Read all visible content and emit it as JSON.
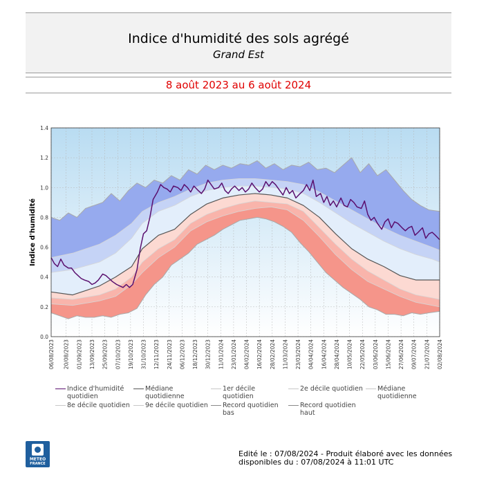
{
  "header": {
    "title": "Indice d'humidité des sols agrégé",
    "subtitle": "Grand Est",
    "period": "8 août 2023 au 6 août 2024"
  },
  "colors": {
    "period_text": "#e00000",
    "index_line": "#5a0f6e",
    "median_line": "#555555",
    "dry_band": "#f59a8e",
    "wet_band": "#8fa5ee",
    "grid": "#b8b8b8"
  },
  "chart_data": {
    "type": "area",
    "ylabel": "Indice d'humidité",
    "ylim": [
      0.0,
      1.4
    ],
    "yticks": [
      "0.0",
      "0.2",
      "0.4",
      "0.6",
      "0.8",
      "1.0",
      "1.2",
      "1.4"
    ],
    "xlim_days": [
      0,
      362
    ],
    "xticks": [
      "06/08/2023",
      "20/08/2023",
      "01/09/2023",
      "13/09/2023",
      "25/09/2023",
      "07/10/2023",
      "19/10/2023",
      "31/10/2023",
      "12/11/2023",
      "24/11/2023",
      "06/12/2023",
      "18/12/2023",
      "30/12/2023",
      "11/01/2024",
      "23/01/2024",
      "04/02/2024",
      "16/02/2024",
      "28/02/2024",
      "11/03/2024",
      "23/03/2024",
      "04/04/2024",
      "16/04/2024",
      "28/04/2024",
      "10/05/2024",
      "22/05/2024",
      "03/06/2024",
      "15/06/2024",
      "27/06/2024",
      "09/07/2024",
      "21/07/2024",
      "02/08/2024"
    ],
    "xtick_days": [
      0,
      14,
      26,
      38,
      50,
      62,
      74,
      86,
      98,
      110,
      122,
      134,
      146,
      158,
      170,
      182,
      194,
      206,
      218,
      230,
      242,
      254,
      266,
      278,
      290,
      302,
      314,
      326,
      338,
      350,
      362
    ],
    "legend_position": "bottom",
    "grid": true,
    "series": [
      {
        "name": "Indice d'humidité quotidien",
        "style": "line",
        "x": [
          0,
          3,
          6,
          9,
          12,
          16,
          19,
          22,
          25,
          28,
          31,
          35,
          38,
          41,
          44,
          48,
          51,
          54,
          57,
          61,
          64,
          67,
          70,
          73,
          76,
          80,
          83,
          86,
          89,
          92,
          95,
          99,
          102,
          105,
          108,
          111,
          114,
          118,
          121,
          124,
          127,
          130,
          133,
          137,
          140,
          143,
          146,
          149,
          152,
          156,
          159,
          162,
          165,
          168,
          171,
          175,
          178,
          181,
          184,
          187,
          190,
          194,
          197,
          200,
          203,
          206,
          209,
          213,
          216,
          219,
          222,
          225,
          228,
          232,
          235,
          238,
          241,
          244,
          247,
          251,
          254,
          257,
          260,
          263,
          266,
          270,
          273,
          276,
          279,
          282,
          285,
          289,
          292,
          295,
          298,
          301,
          304,
          308,
          311,
          314,
          317,
          320,
          323,
          327,
          330,
          333,
          336,
          339,
          342,
          346,
          349,
          352,
          355,
          358,
          362
        ],
        "y": [
          0.53,
          0.49,
          0.47,
          0.52,
          0.48,
          0.46,
          0.46,
          0.43,
          0.41,
          0.39,
          0.38,
          0.37,
          0.35,
          0.36,
          0.38,
          0.42,
          0.41,
          0.39,
          0.37,
          0.35,
          0.34,
          0.33,
          0.35,
          0.33,
          0.35,
          0.45,
          0.59,
          0.69,
          0.71,
          0.8,
          0.92,
          0.97,
          1.02,
          1.0,
          0.99,
          0.97,
          1.01,
          1.0,
          0.98,
          1.02,
          1.0,
          0.97,
          1.01,
          0.98,
          0.96,
          0.99,
          1.05,
          1.02,
          0.99,
          1.0,
          1.03,
          0.98,
          0.96,
          0.99,
          1.01,
          0.98,
          1.0,
          0.97,
          0.99,
          1.03,
          1.0,
          0.97,
          0.99,
          1.04,
          1.01,
          1.04,
          1.02,
          0.98,
          0.95,
          1.0,
          0.96,
          0.98,
          0.93,
          0.96,
          0.98,
          1.02,
          0.98,
          1.05,
          0.94,
          0.96,
          0.9,
          0.94,
          0.88,
          0.91,
          0.87,
          0.93,
          0.88,
          0.87,
          0.92,
          0.9,
          0.87,
          0.86,
          0.91,
          0.82,
          0.78,
          0.8,
          0.76,
          0.72,
          0.77,
          0.79,
          0.73,
          0.77,
          0.76,
          0.73,
          0.71,
          0.73,
          0.74,
          0.68,
          0.7,
          0.73,
          0.66,
          0.69,
          0.7,
          0.68,
          0.65
        ]
      },
      {
        "name": "Médiane quotidienne",
        "style": "line",
        "x": [
          0,
          20,
          45,
          60,
          75,
          85,
          100,
          115,
          130,
          145,
          160,
          175,
          190,
          205,
          220,
          235,
          250,
          265,
          280,
          295,
          310,
          325,
          340,
          355,
          362
        ],
        "y": [
          0.3,
          0.28,
          0.34,
          0.4,
          0.47,
          0.59,
          0.68,
          0.72,
          0.82,
          0.89,
          0.93,
          0.95,
          0.96,
          0.95,
          0.93,
          0.88,
          0.8,
          0.69,
          0.59,
          0.52,
          0.47,
          0.41,
          0.38,
          0.38,
          0.38
        ]
      },
      {
        "name": "1er décile quotidien",
        "style": "line",
        "x": [
          0,
          20,
          45,
          60,
          75,
          85,
          100,
          115,
          130,
          145,
          160,
          175,
          190,
          205,
          220,
          235,
          250,
          265,
          280,
          295,
          310,
          325,
          340,
          355,
          362
        ],
        "y": [
          0.22,
          0.21,
          0.24,
          0.27,
          0.35,
          0.43,
          0.53,
          0.6,
          0.71,
          0.77,
          0.81,
          0.84,
          0.86,
          0.87,
          0.85,
          0.78,
          0.67,
          0.55,
          0.45,
          0.37,
          0.32,
          0.27,
          0.23,
          0.21,
          0.2
        ]
      },
      {
        "name": "2e décile quotidien",
        "style": "line",
        "x": [
          0,
          20,
          45,
          60,
          75,
          85,
          100,
          115,
          130,
          145,
          160,
          175,
          190,
          205,
          220,
          235,
          250,
          265,
          280,
          295,
          310,
          325,
          340,
          355,
          362
        ],
        "y": [
          0.26,
          0.25,
          0.28,
          0.32,
          0.4,
          0.5,
          0.59,
          0.65,
          0.76,
          0.82,
          0.86,
          0.89,
          0.91,
          0.9,
          0.89,
          0.84,
          0.73,
          0.62,
          0.52,
          0.44,
          0.38,
          0.32,
          0.28,
          0.26,
          0.25
        ]
      },
      {
        "name": "Médiane quotidienne",
        "style": "line",
        "x": [
          0,
          20,
          45,
          60,
          75,
          85,
          100,
          115,
          130,
          145,
          160,
          175,
          190,
          205,
          220,
          235,
          250,
          265,
          280,
          295,
          310,
          325,
          340,
          355,
          362
        ],
        "y": [
          0.3,
          0.28,
          0.34,
          0.4,
          0.47,
          0.59,
          0.68,
          0.72,
          0.82,
          0.89,
          0.93,
          0.95,
          0.96,
          0.95,
          0.93,
          0.88,
          0.8,
          0.69,
          0.59,
          0.52,
          0.47,
          0.41,
          0.38,
          0.38,
          0.38
        ]
      },
      {
        "name": "8e décile quotidien",
        "style": "line",
        "x": [
          0,
          20,
          45,
          60,
          75,
          85,
          100,
          115,
          130,
          145,
          160,
          175,
          190,
          205,
          220,
          235,
          250,
          265,
          280,
          295,
          310,
          325,
          340,
          355,
          362
        ],
        "y": [
          0.43,
          0.45,
          0.5,
          0.56,
          0.66,
          0.76,
          0.84,
          0.88,
          0.94,
          0.98,
          1.0,
          1.01,
          1.01,
          1.0,
          0.99,
          0.96,
          0.9,
          0.83,
          0.76,
          0.7,
          0.64,
          0.59,
          0.55,
          0.52,
          0.5
        ]
      },
      {
        "name": "9e décile quotidien",
        "style": "line",
        "x": [
          0,
          20,
          45,
          60,
          75,
          85,
          100,
          115,
          130,
          145,
          160,
          175,
          190,
          205,
          220,
          235,
          250,
          265,
          280,
          295,
          310,
          325,
          340,
          355,
          362
        ],
        "y": [
          0.53,
          0.56,
          0.62,
          0.68,
          0.76,
          0.84,
          0.9,
          0.94,
          0.99,
          1.03,
          1.05,
          1.06,
          1.06,
          1.05,
          1.04,
          1.02,
          0.97,
          0.91,
          0.85,
          0.79,
          0.73,
          0.68,
          0.64,
          0.6,
          0.58
        ]
      },
      {
        "name": "Record quotidien bas",
        "style": "line",
        "x": [
          0,
          8,
          16,
          24,
          32,
          40,
          48,
          56,
          64,
          72,
          80,
          88,
          96,
          104,
          112,
          120,
          128,
          136,
          144,
          152,
          160,
          168,
          176,
          184,
          192,
          200,
          208,
          216,
          224,
          232,
          240,
          248,
          256,
          264,
          272,
          280,
          288,
          296,
          304,
          312,
          320,
          328,
          336,
          344,
          352,
          362
        ],
        "y": [
          0.16,
          0.14,
          0.12,
          0.14,
          0.13,
          0.13,
          0.14,
          0.13,
          0.15,
          0.16,
          0.19,
          0.28,
          0.35,
          0.4,
          0.48,
          0.52,
          0.56,
          0.62,
          0.65,
          0.68,
          0.72,
          0.75,
          0.78,
          0.79,
          0.8,
          0.79,
          0.77,
          0.74,
          0.7,
          0.63,
          0.57,
          0.5,
          0.43,
          0.38,
          0.33,
          0.29,
          0.25,
          0.2,
          0.18,
          0.15,
          0.15,
          0.14,
          0.16,
          0.15,
          0.16,
          0.17
        ]
      },
      {
        "name": "Record quotidien haut",
        "style": "line",
        "x": [
          0,
          8,
          16,
          24,
          32,
          40,
          48,
          56,
          64,
          72,
          80,
          88,
          96,
          104,
          112,
          120,
          128,
          136,
          144,
          152,
          160,
          168,
          176,
          184,
          192,
          200,
          208,
          216,
          224,
          232,
          240,
          248,
          256,
          264,
          272,
          280,
          288,
          296,
          304,
          312,
          320,
          328,
          336,
          344,
          352,
          362
        ],
        "y": [
          0.8,
          0.78,
          0.83,
          0.8,
          0.86,
          0.88,
          0.9,
          0.96,
          0.91,
          0.98,
          1.03,
          1.0,
          1.05,
          1.03,
          1.08,
          1.05,
          1.12,
          1.09,
          1.15,
          1.12,
          1.15,
          1.13,
          1.16,
          1.15,
          1.18,
          1.13,
          1.16,
          1.12,
          1.15,
          1.14,
          1.17,
          1.12,
          1.13,
          1.1,
          1.15,
          1.2,
          1.1,
          1.16,
          1.08,
          1.12,
          1.05,
          0.98,
          0.92,
          0.88,
          0.85,
          0.84
        ]
      }
    ]
  },
  "legend": [
    {
      "label": "Indice d'humidité quotidien",
      "color": "#5a0f6e"
    },
    {
      "label": "Médiane quotidienne",
      "color": "#555555"
    },
    {
      "label": "1er décile quotidien",
      "color": "#c8c8c8"
    },
    {
      "label": "2e décile quotidien",
      "color": "#c8c8c8"
    },
    {
      "label": "Médiane quotidienne",
      "color": "#c8c8c8"
    },
    {
      "label": "8e décile quotidien",
      "color": "#c8c8c8"
    },
    {
      "label": "9e décile quotidien",
      "color": "#c8c8c8"
    },
    {
      "label": "Record quotidien bas",
      "color": "#888888"
    },
    {
      "label": "Record quotidien haut",
      "color": "#888888"
    }
  ],
  "logo": {
    "line1": "METEO",
    "line2": "FRANCE"
  },
  "footer": {
    "line1": "Edité le : 07/08/2024 - Produit élaboré avec les données",
    "line2": "disponibles du : 07/08/2024 à 11:01 UTC"
  }
}
